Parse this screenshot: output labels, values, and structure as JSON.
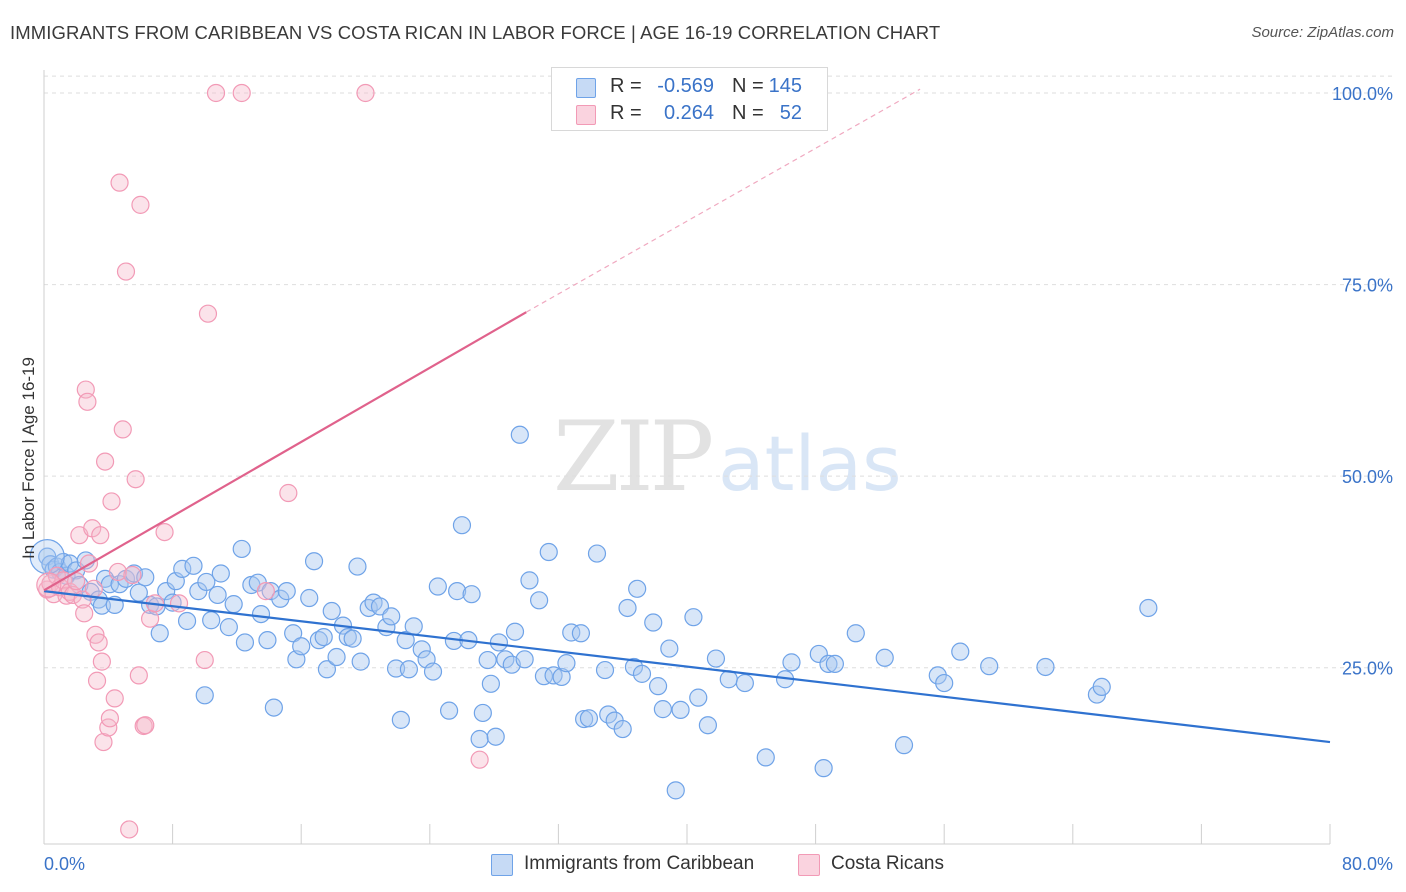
{
  "header": {
    "title": "IMMIGRANTS FROM CARIBBEAN VS COSTA RICAN IN LABOR FORCE | AGE 16-19 CORRELATION CHART",
    "source": "Source: ZipAtlas.com"
  },
  "watermark": {
    "zip": "ZIP",
    "atlas": "atlas"
  },
  "legend": {
    "rows": [
      {
        "r_label": "R =",
        "r_value": "-0.569",
        "n_label": "N =",
        "n_value": "145",
        "color": "#a9c8f0"
      },
      {
        "r_label": "R =",
        "r_value": "0.264",
        "n_label": "N =",
        "n_value": "52",
        "color": "#f6b8cb"
      }
    ]
  },
  "bottom_legend": {
    "items": [
      {
        "label": "Immigrants from Caribbean",
        "color": "#a9c8f0"
      },
      {
        "label": "Costa Ricans",
        "color": "#f6b8cb"
      }
    ]
  },
  "chart_data": {
    "type": "scatter",
    "title": "IMMIGRANTS FROM CARIBBEAN VS COSTA RICAN IN LABOR FORCE | AGE 16-19 CORRELATION CHART",
    "ylabel": "In Labor Force | Age 16-19",
    "xlabel": "",
    "xlim": [
      0,
      80
    ],
    "ylim": [
      2,
      103
    ],
    "x_tick_labels": [
      "0.0%",
      "80.0%"
    ],
    "y_ticks": [
      25,
      50,
      75,
      100
    ],
    "y_tick_labels": [
      "25.0%",
      "50.0%",
      "75.0%",
      "100.0%"
    ],
    "grid": true,
    "legend_position": "top-center",
    "colors": {
      "caribbean": "#6fa3e8",
      "costa_rican": "#f29ab6",
      "caribbean_line": "#2f72d0",
      "costa_rican_line": "#e0628c"
    },
    "series": [
      {
        "name": "Immigrants from Caribbean",
        "points": [
          [
            0.2,
            39.5
          ],
          [
            0.4,
            38.5
          ],
          [
            0.6,
            37.8
          ],
          [
            0.8,
            38.2
          ],
          [
            1.0,
            37.5
          ],
          [
            1.2,
            38.8
          ],
          [
            1.4,
            37.0
          ],
          [
            1.6,
            38.6
          ],
          [
            2.0,
            37.7
          ],
          [
            2.2,
            35.8
          ],
          [
            2.6,
            39.0
          ],
          [
            2.9,
            34.9
          ],
          [
            3.4,
            33.9
          ],
          [
            3.6,
            33.1
          ],
          [
            3.8,
            36.6
          ],
          [
            4.1,
            35.9
          ],
          [
            4.4,
            33.2
          ],
          [
            4.7,
            35.9
          ],
          [
            5.1,
            36.6
          ],
          [
            5.6,
            37.3
          ],
          [
            5.9,
            34.8
          ],
          [
            6.3,
            36.8
          ],
          [
            6.6,
            33.2
          ],
          [
            7.0,
            33.0
          ],
          [
            7.2,
            29.5
          ],
          [
            7.6,
            35.0
          ],
          [
            8.0,
            33.5
          ],
          [
            8.2,
            36.3
          ],
          [
            8.6,
            37.9
          ],
          [
            8.9,
            31.1
          ],
          [
            9.3,
            38.3
          ],
          [
            9.6,
            35.0
          ],
          [
            10.0,
            21.4
          ],
          [
            10.1,
            36.2
          ],
          [
            10.4,
            31.2
          ],
          [
            10.8,
            34.5
          ],
          [
            11.0,
            37.3
          ],
          [
            11.5,
            30.3
          ],
          [
            11.8,
            33.3
          ],
          [
            12.3,
            40.5
          ],
          [
            12.5,
            28.3
          ],
          [
            12.9,
            35.8
          ],
          [
            13.3,
            36.1
          ],
          [
            13.5,
            32.0
          ],
          [
            13.9,
            28.6
          ],
          [
            14.1,
            35.0
          ],
          [
            14.3,
            19.8
          ],
          [
            14.7,
            34.0
          ],
          [
            15.1,
            35.0
          ],
          [
            15.5,
            29.5
          ],
          [
            15.7,
            26.1
          ],
          [
            16.0,
            27.8
          ],
          [
            16.5,
            34.1
          ],
          [
            16.8,
            38.9
          ],
          [
            17.1,
            28.6
          ],
          [
            17.4,
            29.0
          ],
          [
            17.6,
            24.8
          ],
          [
            17.9,
            32.4
          ],
          [
            18.2,
            26.4
          ],
          [
            18.6,
            30.5
          ],
          [
            18.9,
            29.0
          ],
          [
            19.2,
            28.8
          ],
          [
            19.5,
            38.2
          ],
          [
            19.7,
            25.8
          ],
          [
            20.2,
            32.8
          ],
          [
            20.5,
            33.5
          ],
          [
            20.9,
            33.0
          ],
          [
            21.3,
            30.3
          ],
          [
            21.6,
            31.7
          ],
          [
            21.9,
            24.9
          ],
          [
            22.2,
            18.2
          ],
          [
            22.5,
            28.6
          ],
          [
            22.7,
            24.8
          ],
          [
            23.0,
            30.4
          ],
          [
            23.5,
            27.4
          ],
          [
            23.8,
            26.1
          ],
          [
            24.2,
            24.5
          ],
          [
            24.5,
            35.6
          ],
          [
            25.2,
            19.4
          ],
          [
            25.5,
            28.5
          ],
          [
            25.7,
            35.0
          ],
          [
            26.0,
            43.6
          ],
          [
            26.4,
            28.6
          ],
          [
            26.6,
            34.6
          ],
          [
            27.1,
            15.7
          ],
          [
            27.3,
            19.1
          ],
          [
            27.6,
            26.0
          ],
          [
            27.8,
            22.9
          ],
          [
            28.1,
            16.0
          ],
          [
            28.3,
            28.3
          ],
          [
            28.7,
            26.1
          ],
          [
            29.1,
            25.4
          ],
          [
            29.3,
            29.7
          ],
          [
            29.6,
            55.4
          ],
          [
            29.9,
            26.1
          ],
          [
            30.2,
            36.4
          ],
          [
            30.8,
            33.8
          ],
          [
            31.1,
            23.9
          ],
          [
            31.4,
            40.1
          ],
          [
            31.7,
            24.0
          ],
          [
            32.2,
            23.8
          ],
          [
            32.5,
            25.6
          ],
          [
            32.8,
            29.6
          ],
          [
            33.4,
            29.5
          ],
          [
            33.6,
            18.3
          ],
          [
            33.9,
            18.4
          ],
          [
            34.4,
            39.9
          ],
          [
            34.9,
            24.7
          ],
          [
            35.1,
            18.9
          ],
          [
            35.5,
            18.1
          ],
          [
            36.0,
            17.0
          ],
          [
            36.3,
            32.8
          ],
          [
            36.7,
            25.1
          ],
          [
            36.9,
            35.3
          ],
          [
            37.2,
            24.2
          ],
          [
            37.9,
            30.9
          ],
          [
            38.2,
            22.6
          ],
          [
            38.5,
            19.6
          ],
          [
            38.9,
            27.5
          ],
          [
            39.3,
            9.0
          ],
          [
            39.6,
            19.5
          ],
          [
            40.4,
            31.6
          ],
          [
            40.7,
            21.1
          ],
          [
            41.3,
            17.5
          ],
          [
            41.8,
            26.2
          ],
          [
            42.6,
            23.5
          ],
          [
            43.6,
            23.0
          ],
          [
            44.9,
            13.3
          ],
          [
            46.1,
            23.5
          ],
          [
            46.5,
            25.7
          ],
          [
            48.2,
            26.8
          ],
          [
            48.5,
            11.9
          ],
          [
            48.8,
            25.5
          ],
          [
            49.2,
            25.5
          ],
          [
            50.5,
            29.5
          ],
          [
            52.3,
            26.3
          ],
          [
            53.5,
            14.9
          ],
          [
            55.6,
            24.0
          ],
          [
            56.0,
            23.0
          ],
          [
            57.0,
            27.1
          ],
          [
            58.8,
            25.2
          ],
          [
            62.3,
            25.1
          ],
          [
            65.5,
            21.5
          ],
          [
            65.8,
            22.5
          ],
          [
            68.7,
            32.8
          ]
        ]
      },
      {
        "name": "Costa Ricans",
        "points": [
          [
            0.2,
            35.2
          ],
          [
            0.4,
            36.0
          ],
          [
            0.6,
            34.6
          ],
          [
            0.8,
            37.0
          ],
          [
            1.0,
            35.5
          ],
          [
            1.2,
            36.4
          ],
          [
            1.4,
            34.4
          ],
          [
            1.6,
            34.9
          ],
          [
            1.8,
            34.5
          ],
          [
            2.0,
            36.3
          ],
          [
            2.2,
            42.3
          ],
          [
            2.4,
            33.9
          ],
          [
            2.5,
            32.1
          ],
          [
            2.6,
            61.3
          ],
          [
            2.7,
            59.7
          ],
          [
            2.8,
            38.6
          ],
          [
            3.0,
            43.2
          ],
          [
            3.1,
            35.3
          ],
          [
            3.2,
            29.3
          ],
          [
            3.3,
            23.3
          ],
          [
            3.4,
            28.3
          ],
          [
            3.5,
            42.3
          ],
          [
            3.6,
            25.8
          ],
          [
            3.7,
            15.3
          ],
          [
            3.8,
            51.9
          ],
          [
            4.0,
            17.2
          ],
          [
            4.1,
            18.4
          ],
          [
            4.2,
            46.7
          ],
          [
            4.4,
            21.0
          ],
          [
            4.6,
            37.5
          ],
          [
            4.7,
            88.3
          ],
          [
            4.9,
            56.1
          ],
          [
            5.1,
            76.7
          ],
          [
            5.3,
            3.9
          ],
          [
            5.5,
            37.1
          ],
          [
            5.7,
            49.6
          ],
          [
            5.9,
            24.0
          ],
          [
            6.0,
            85.4
          ],
          [
            6.2,
            17.4
          ],
          [
            6.3,
            17.5
          ],
          [
            6.6,
            31.4
          ],
          [
            6.9,
            33.4
          ],
          [
            7.5,
            42.7
          ],
          [
            8.4,
            33.4
          ],
          [
            10.2,
            71.2
          ],
          [
            10.0,
            26.0
          ],
          [
            10.7,
            100.0
          ],
          [
            12.3,
            100.0
          ],
          [
            13.8,
            35.0
          ],
          [
            15.2,
            47.8
          ],
          [
            20.0,
            100.0
          ],
          [
            27.1,
            13.0
          ]
        ]
      }
    ],
    "trend_lines": [
      {
        "name": "Immigrants from Caribbean",
        "x": [
          0,
          80
        ],
        "y": [
          35.0,
          15.3
        ]
      },
      {
        "name": "Costa Ricans",
        "x": [
          0,
          30
        ],
        "y": [
          35.1,
          71.4
        ],
        "dashed_extension_to": [
          54.5,
          100.5
        ]
      }
    ]
  }
}
